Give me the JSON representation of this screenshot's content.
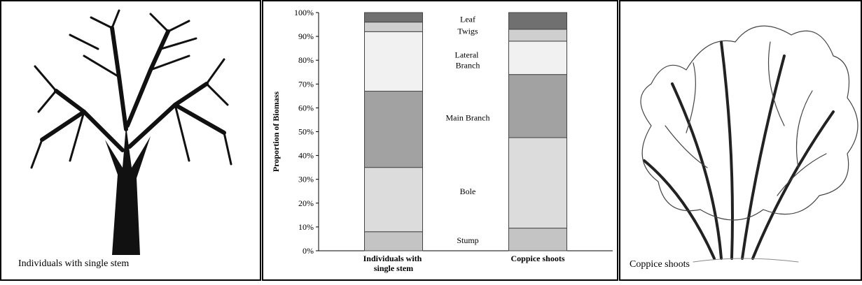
{
  "chart_data": {
    "type": "stacked_bar",
    "y_label": "Proportion of Biomass",
    "categories": [
      "Individuals with single stem",
      "Coppice shoots"
    ],
    "series": [
      {
        "name": "Stump",
        "color": "#c4c4c4",
        "values": [
          8,
          9.5
        ]
      },
      {
        "name": "Bole",
        "color": "#dcdcdc",
        "values": [
          27,
          38
        ]
      },
      {
        "name": "Main Branch",
        "color": "#a2a2a2",
        "values": [
          32,
          26.5
        ]
      },
      {
        "name": "Lateral Branch",
        "color": "#f1f1f1",
        "values": [
          25,
          14
        ]
      },
      {
        "name": "Twigs",
        "color": "#cfcfcf",
        "values": [
          4,
          5
        ]
      },
      {
        "name": "Leaf",
        "color": "#707070",
        "values": [
          4,
          7
        ]
      }
    ],
    "ylim": [
      0,
      100
    ],
    "yticks": [
      {
        "value": 0,
        "label": "0%"
      },
      {
        "value": 10,
        "label": "10%"
      },
      {
        "value": 20,
        "label": "20%"
      },
      {
        "value": 30,
        "label": "30%"
      },
      {
        "value": 40,
        "label": "40%"
      },
      {
        "value": 50,
        "label": "50%"
      },
      {
        "value": 60,
        "label": "60%"
      },
      {
        "value": 70,
        "label": "70%"
      },
      {
        "value": 80,
        "label": "80%"
      },
      {
        "value": 90,
        "label": "90%"
      },
      {
        "value": 100,
        "label": "100%"
      }
    ]
  },
  "panels": [
    {
      "caption": "Individuals with single stem"
    },
    {
      "caption": "Coppice shoots"
    }
  ]
}
